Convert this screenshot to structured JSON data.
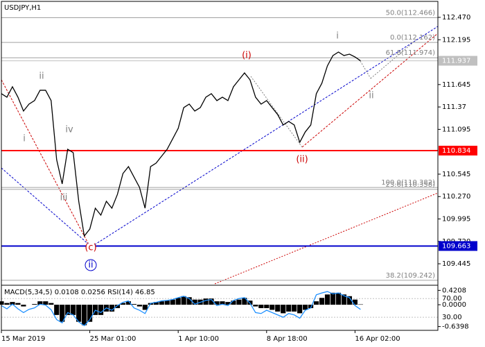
{
  "chart_data": [
    {
      "type": "line",
      "title": "USDJPY,H1",
      "color": "#000000",
      "values": [
        111.533,
        111.49,
        111.618,
        111.49,
        111.32,
        111.405,
        111.448,
        111.575,
        111.575,
        111.448,
        110.723,
        110.425,
        110.851,
        110.809,
        110.212,
        109.786,
        109.871,
        110.127,
        110.042,
        110.212,
        110.127,
        110.297,
        110.553,
        110.638,
        110.51,
        110.383,
        110.127,
        110.638,
        110.681,
        110.766,
        110.851,
        110.979,
        111.107,
        111.362,
        111.405,
        111.32,
        111.362,
        111.49,
        111.533,
        111.448,
        111.49,
        111.448,
        111.618,
        111.703,
        111.788,
        111.703,
        111.49,
        111.405,
        111.448,
        111.362,
        111.277,
        111.149,
        111.192,
        111.149,
        110.936,
        111.064,
        111.149,
        111.533,
        111.661,
        111.874,
        112.001,
        112.044,
        112.001,
        112.018,
        111.984,
        111.937
      ],
      "xlim": [
        0,
        79
      ],
      "xticks": [
        {
          "value": 0,
          "label": "15 Mar 2019"
        },
        {
          "value": 16,
          "label": "25 Mar 01:00"
        },
        {
          "value": 32,
          "label": "1 Apr 10:00"
        },
        {
          "value": 48,
          "label": "8 Apr 18:00"
        },
        {
          "value": 64,
          "label": "16 Apr 02:00"
        }
      ],
      "ylim": [
        109.19,
        112.683
      ],
      "yticks": [
        {
          "value": 112.47,
          "label": "112.470"
        },
        112.195,
        111.645,
        111.37,
        111.095,
        110.545,
        {
          "value": 110.27,
          "label": "110.270"
        },
        109.995,
        {
          "value": 109.72,
          "label": "109.720"
        },
        109.445
      ],
      "hlines": [
        {
          "value": 111.937,
          "color": "#c0c0c0"
        },
        {
          "value": 110.834,
          "color": "#ff0000"
        },
        {
          "value": 109.663,
          "color": "#0000cc"
        }
      ],
      "fib_levels": [
        {
          "value": 112.466,
          "label": "50.0(112.466)"
        },
        {
          "value": 112.162,
          "label": "0.0(112.162)"
        },
        {
          "value": 111.974,
          "label": "61.8(111.974)"
        },
        {
          "value": 110.382,
          "label": "100.0(110.382)"
        },
        {
          "value": 110.358,
          "label": "23.6(110.358)"
        },
        {
          "value": 109.242,
          "label": "38.2(109.242)"
        }
      ],
      "wave_labels": [
        {
          "text": "i",
          "color": "#808080"
        },
        {
          "text": "ii",
          "color": "#808080"
        },
        {
          "text": "iii",
          "color": "#808080"
        },
        {
          "text": "iv",
          "color": "#808080"
        },
        {
          "text": "(c)",
          "color": "#cc0000"
        },
        {
          "text": "ii",
          "color": "#0000cc"
        },
        {
          "text": "(i)",
          "color": "#cc0000"
        },
        {
          "text": "(ii)",
          "color": "#cc0000"
        },
        {
          "text": "i",
          "color": "#808080"
        },
        {
          "text": "ii",
          "color": "#808080"
        }
      ]
    },
    {
      "type": "bar",
      "title": "MACD(5,34,5) 0.0108 0.0256 RSI(14) 46.85",
      "color": "#000000",
      "values": [
        0.1,
        0.05,
        0.08,
        0.05,
        -0.05,
        0,
        0.02,
        0.1,
        0.1,
        0.05,
        -0.3,
        -0.5,
        -0.3,
        -0.3,
        -0.5,
        -0.6,
        -0.5,
        -0.3,
        -0.3,
        -0.2,
        -0.2,
        -0.1,
        0.05,
        0.1,
        0.02,
        -0.05,
        -0.15,
        0.05,
        0.08,
        0.1,
        0.12,
        0.15,
        0.2,
        0.25,
        0.22,
        0.15,
        0.15,
        0.18,
        0.18,
        0.1,
        0.1,
        0.08,
        0.12,
        0.15,
        0.2,
        0.12,
        -0.05,
        -0.1,
        -0.1,
        -0.15,
        -0.2,
        -0.25,
        -0.2,
        -0.2,
        -0.25,
        -0.15,
        -0.1,
        0.1,
        0.2,
        0.3,
        0.35,
        0.35,
        0.3,
        0.25,
        0.15,
        0.0108
      ],
      "ylim": [
        -0.75,
        0.55
      ],
      "yticks": [
        0.4208,
        {
          "value": 0,
          "label": "0.0000"
        },
        -0.6398
      ],
      "rsi_values": [
        55,
        48,
        58,
        48,
        40,
        47,
        50,
        58,
        56,
        46,
        25,
        18,
        40,
        35,
        20,
        12,
        25,
        45,
        40,
        50,
        45,
        55,
        62,
        65,
        50,
        45,
        38,
        60,
        62,
        65,
        66,
        68,
        72,
        75,
        70,
        58,
        62,
        66,
        68,
        55,
        58,
        55,
        66,
        70,
        72,
        60,
        40,
        38,
        45,
        40,
        35,
        30,
        38,
        35,
        28,
        45,
        50,
        78,
        82,
        85,
        80,
        82,
        76,
        72,
        55,
        46.85
      ],
      "rsi_color": "#1e90ff",
      "y2lim": [
        2,
        97
      ],
      "y2ticks": [
        {
          "value": 70,
          "label": "70.00"
        },
        {
          "value": 30,
          "label": "30.00"
        }
      ]
    }
  ]
}
